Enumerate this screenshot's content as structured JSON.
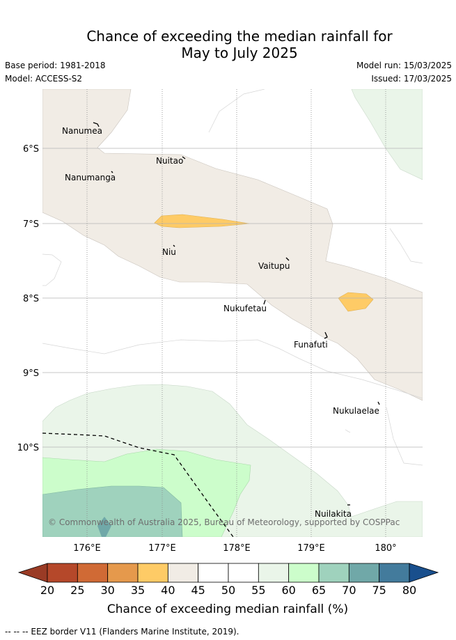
{
  "header": {
    "title_line1": "Chance of exceeding the median rainfall for",
    "title_line2": "May to July 2025",
    "base_period": "Base period: 1981-2018",
    "model": "Model: ACCESS-S2",
    "model_run": "Model run: 15/03/2025",
    "issued": "Issued: 17/03/2025"
  },
  "map": {
    "lat_ticks": [
      "6°S",
      "7°S",
      "8°S",
      "9°S",
      "10°S"
    ],
    "lon_ticks": [
      "176°E",
      "177°E",
      "178°E",
      "179°E",
      "180°"
    ],
    "islands": [
      "Nanumea",
      "Nuitao",
      "Nanumanga",
      "Niu",
      "Vaitupu",
      "Nukufetau",
      "Funafuti",
      "Nukulaelae",
      "Nuilakita"
    ],
    "copyright": "© Commonwealth of Australia 2025, Bureau of Meteorology, supported by COSPPac"
  },
  "colorbar": {
    "ticks": [
      "20",
      "25",
      "30",
      "35",
      "40",
      "45",
      "50",
      "55",
      "60",
      "65",
      "70",
      "75",
      "80"
    ],
    "colors": [
      "#b5482a",
      "#d06a35",
      "#e5994c",
      "#fecb66",
      "#f1ece5",
      "#ffffff",
      "#ffffff",
      "#eaf5e9",
      "#ccfdcb",
      "#9fd2bd",
      "#70a8a8",
      "#437b9c",
      "#194f8d"
    ],
    "under_color": "#9a3b25",
    "label": "Chance of exceeding median rainfall (%)"
  },
  "legend": {
    "eez_label": "--  --  -- EEZ border V11 (Flanders Marine Institute, 2019)."
  }
}
